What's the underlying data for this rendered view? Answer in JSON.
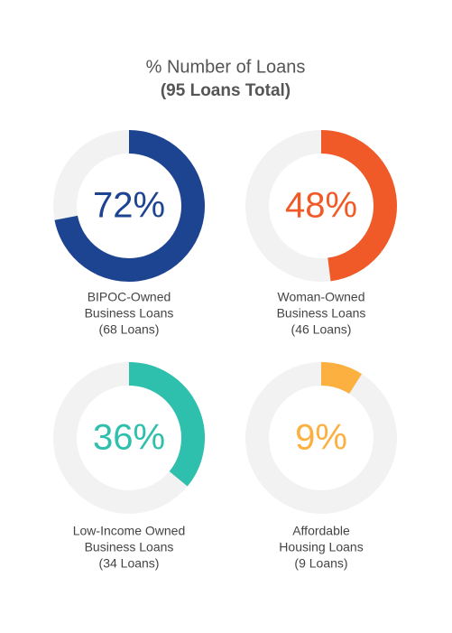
{
  "header": {
    "title": "% Number of Loans",
    "subtitle": "(95 Loans Total)"
  },
  "chart_data": [
    {
      "type": "donut",
      "values": [
        72
      ],
      "value_labels": [
        "72%"
      ],
      "color": "#1d4491",
      "label": [
        "BIPOC-Owned",
        "Business Loans",
        "(68 Loans)"
      ]
    },
    {
      "type": "donut",
      "values": [
        48
      ],
      "value_labels": [
        "48%"
      ],
      "color": "#f05a28",
      "label": [
        "Woman-Owned",
        "Business Loans",
        "(46 Loans)"
      ]
    },
    {
      "type": "donut",
      "values": [
        36
      ],
      "value_labels": [
        "36%"
      ],
      "color": "#2ebfad",
      "label": [
        "Low-Income Owned",
        "Business Loans",
        "(34 Loans)"
      ]
    },
    {
      "type": "donut",
      "values": [
        9
      ],
      "value_labels": [
        "9%"
      ],
      "color": "#fbb040",
      "label": [
        "Affordable",
        "Housing Loans",
        "(9 Loans)"
      ]
    }
  ]
}
